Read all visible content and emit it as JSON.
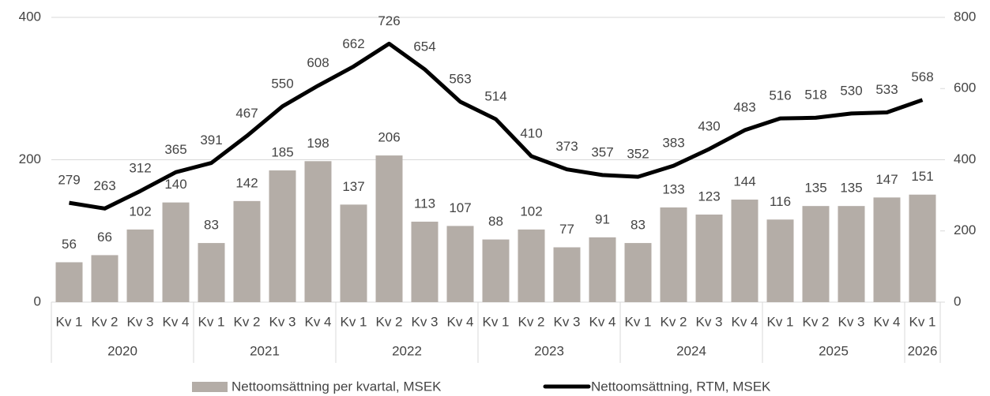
{
  "chart_data": {
    "type": "bar-line",
    "categories": [
      "Kv 1",
      "Kv 2",
      "Kv 3",
      "Kv 4",
      "Kv 1",
      "Kv 2",
      "Kv 3",
      "Kv 4",
      "Kv 1",
      "Kv 2",
      "Kv 3",
      "Kv 4",
      "Kv 1",
      "Kv 2",
      "Kv 3",
      "Kv 4",
      "Kv 1",
      "Kv 2",
      "Kv 3",
      "Kv 4",
      "Kv 1",
      "Kv 2",
      "Kv 3",
      "Kv 4",
      "Kv 1"
    ],
    "category_groups": [
      {
        "label": "2020",
        "count": 4
      },
      {
        "label": "2021",
        "count": 4
      },
      {
        "label": "2022",
        "count": 4
      },
      {
        "label": "2023",
        "count": 4
      },
      {
        "label": "2024",
        "count": 4
      },
      {
        "label": "2025",
        "count": 4
      },
      {
        "label": "2026",
        "count": 1
      }
    ],
    "series": [
      {
        "name": "Nettoomsättning per kvartal, MSEK",
        "type": "bar",
        "color": "#b4ada7",
        "axis": "y",
        "values": [
          56,
          66,
          102,
          140,
          83,
          142,
          185,
          198,
          137,
          206,
          113,
          107,
          88,
          102,
          77,
          91,
          83,
          133,
          123,
          144,
          116,
          135,
          135,
          147,
          151
        ]
      },
      {
        "name": "Nettoomsättning, RTM, MSEK",
        "type": "line",
        "color": "#000000",
        "axis": "y2",
        "values": [
          279,
          263,
          312,
          365,
          391,
          467,
          550,
          608,
          662,
          726,
          654,
          563,
          514,
          410,
          373,
          357,
          352,
          383,
          430,
          483,
          516,
          518,
          530,
          533,
          568
        ]
      }
    ],
    "ylim": [
      0,
      400
    ],
    "yticks": [
      0,
      200,
      400
    ],
    "y2lim": [
      0,
      800
    ],
    "y2ticks": [
      0,
      200,
      400,
      600,
      800
    ],
    "grid": true
  }
}
